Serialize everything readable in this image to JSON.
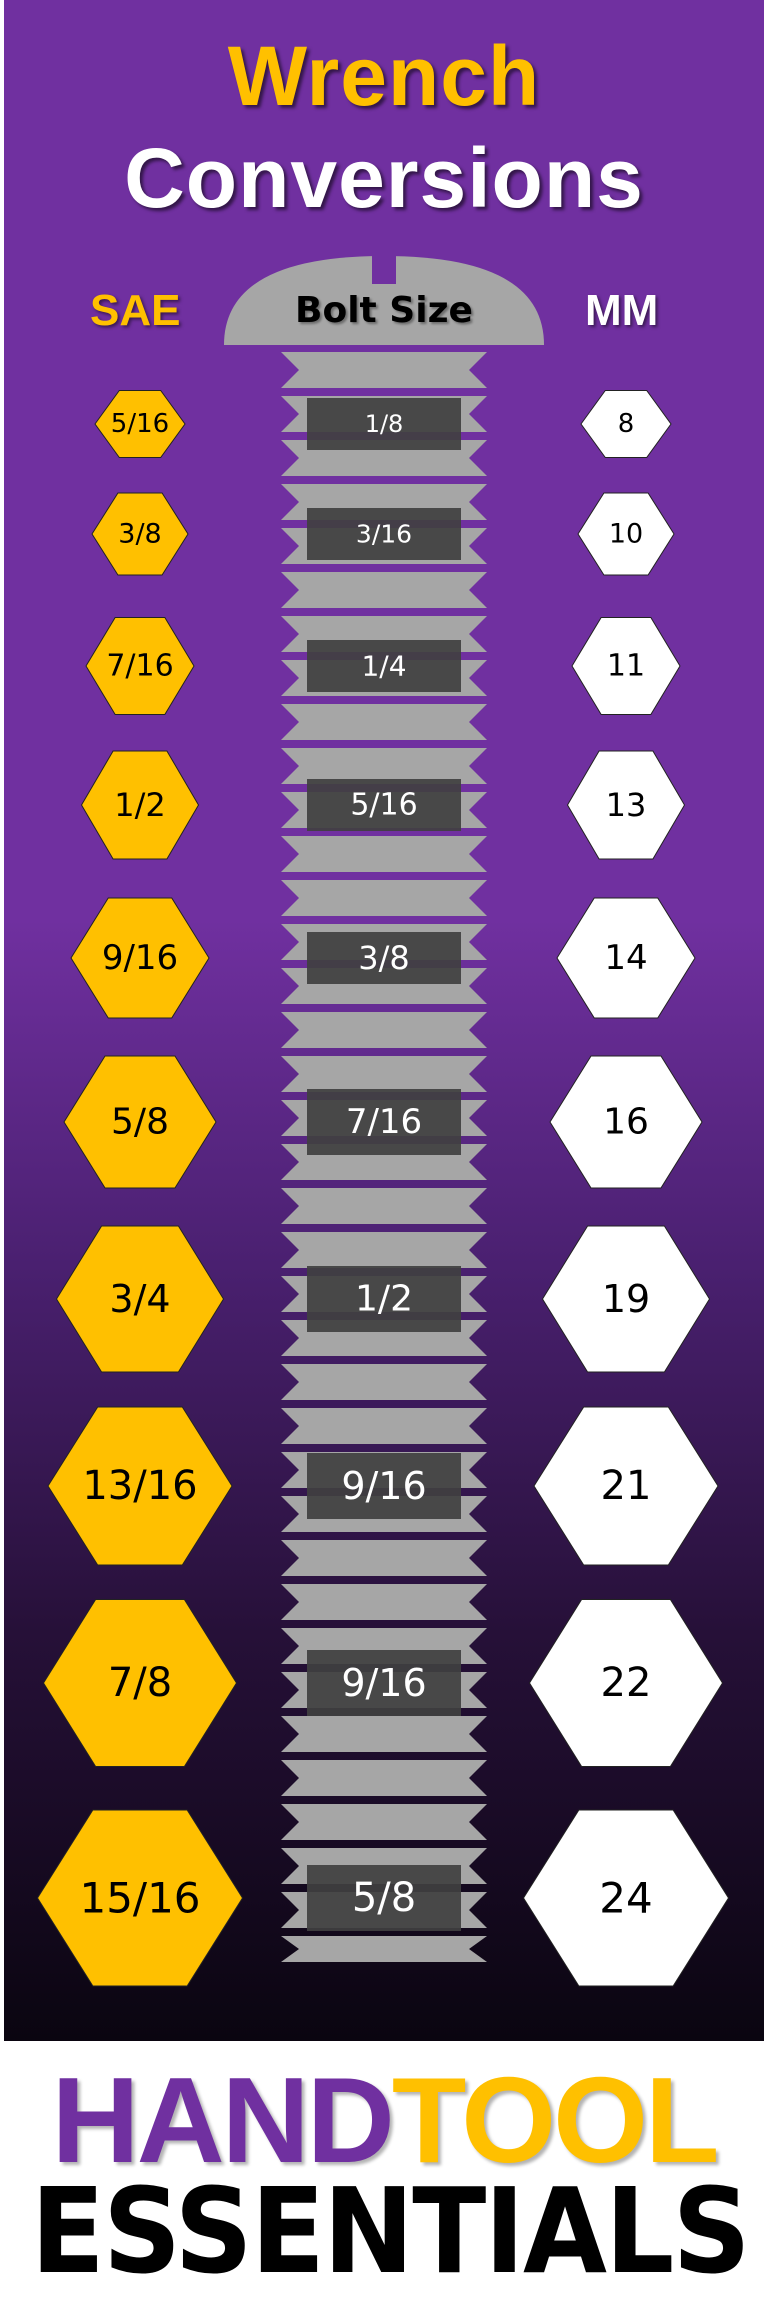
{
  "title": {
    "line1": "Wrench",
    "line2": "Conversions"
  },
  "headers": {
    "sae": "SAE",
    "bolt": "Bolt Size",
    "mm": "MM"
  },
  "colors": {
    "purple": "#7030a0",
    "gold": "#ffc000",
    "bolt_gray": "#a6a6a6",
    "label_box": "#404040"
  },
  "rows": [
    {
      "sae": "5/16",
      "bolt": "1/8",
      "mm": "8"
    },
    {
      "sae": "3/8",
      "bolt": "3/16",
      "mm": "10"
    },
    {
      "sae": "7/16",
      "bolt": "1/4",
      "mm": "11"
    },
    {
      "sae": "1/2",
      "bolt": "5/16",
      "mm": "13"
    },
    {
      "sae": "9/16",
      "bolt": "3/8",
      "mm": "14"
    },
    {
      "sae": "5/8",
      "bolt": "7/16",
      "mm": "16"
    },
    {
      "sae": "3/4",
      "bolt": "1/2",
      "mm": "19"
    },
    {
      "sae": "13/16",
      "bolt": "9/16",
      "mm": "21"
    },
    {
      "sae": "7/8",
      "bolt": "9/16",
      "mm": "22"
    },
    {
      "sae": "15/16",
      "bolt": "5/8",
      "mm": "24"
    }
  ],
  "brand": {
    "part1": "HAND",
    "part2": "TOOL",
    "part3": "ESSENTIALS"
  }
}
